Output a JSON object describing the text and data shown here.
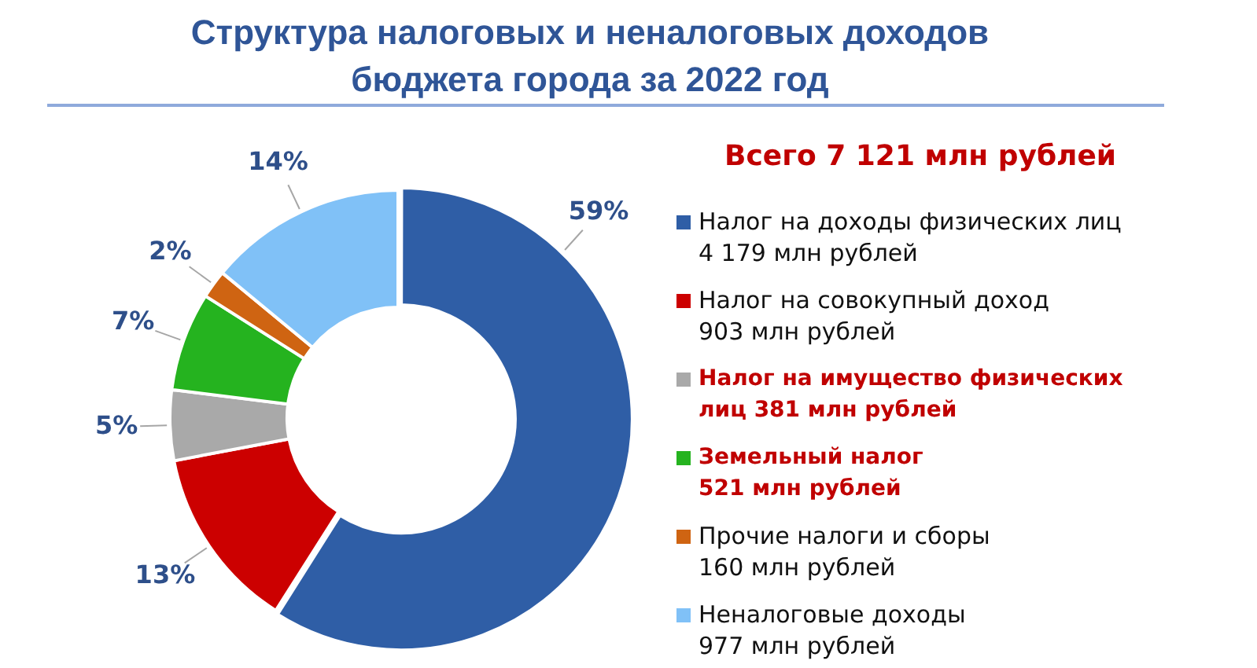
{
  "chart_data": {
    "type": "donut",
    "title": "Структура налоговых и неналоговых доходов бюджета города за 2022 год",
    "subtitle": "Всего 7 121 млн рублей",
    "categories": [
      "Налог на доходы физических лиц\n4 179 млн рублей",
      "Налог на совокупный доход\n903 млн рублей",
      "Налог на имущество физических\nлиц 381 млн рублей",
      "Земельный налог\n521 млн рублей",
      "Прочие налоги и сборы\n160 млн рублей",
      "Неналоговые доходы\n977 млн рублей"
    ],
    "values": [
      59,
      13,
      5,
      7,
      2,
      14
    ],
    "value_labels": [
      "59%",
      "13%",
      "5%",
      "7%",
      "2%",
      "14%"
    ],
    "colors": [
      "#2f5ea6",
      "#cc0000",
      "#a9a9a9",
      "#25b31f",
      "#cf6412",
      "#80c1f7"
    ],
    "legend": "right"
  }
}
